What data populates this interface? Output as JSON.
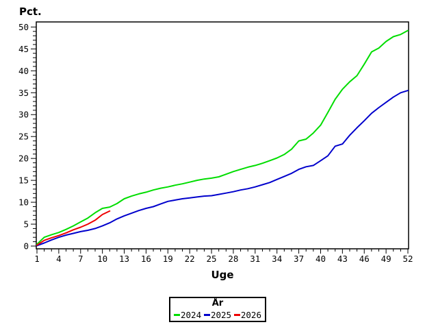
{
  "page": {
    "background": "#ffffff",
    "axis_color": "#000000"
  },
  "chart_data": {
    "type": "line",
    "title": "",
    "ylabel": "Pct.",
    "xlabel": "Uge",
    "xlim": [
      1,
      52
    ],
    "ylim": [
      0,
      50
    ],
    "x_major_step": 3,
    "x_minor_step": 1,
    "y_major_step": 5,
    "y_minor_step": 1,
    "grid": false,
    "legend": {
      "title": "År",
      "position": "bottom-center"
    },
    "series": [
      {
        "name": "2024",
        "color": "#00dd00",
        "x_start": 1,
        "values": [
          0.4,
          2.0,
          2.6,
          3.1,
          3.8,
          4.6,
          5.5,
          6.4,
          7.6,
          8.6,
          8.9,
          9.7,
          10.8,
          11.4,
          11.9,
          12.3,
          12.8,
          13.2,
          13.5,
          13.9,
          14.2,
          14.6,
          15.0,
          15.3,
          15.5,
          15.8,
          16.4,
          17.0,
          17.5,
          18.0,
          18.4,
          18.9,
          19.5,
          20.1,
          20.9,
          22.1,
          24.0,
          24.4,
          25.8,
          27.6,
          30.5,
          33.5,
          35.8,
          37.5,
          38.9,
          41.5,
          44.3,
          45.2,
          46.7,
          47.8,
          48.3,
          49.2
        ]
      },
      {
        "name": "2025",
        "color": "#0000cc",
        "x_start": 1,
        "values": [
          0.1,
          0.7,
          1.4,
          2.0,
          2.5,
          2.9,
          3.3,
          3.6,
          4.0,
          4.6,
          5.3,
          6.2,
          6.9,
          7.5,
          8.1,
          8.6,
          9.0,
          9.6,
          10.2,
          10.5,
          10.8,
          11.0,
          11.2,
          11.4,
          11.5,
          11.8,
          12.1,
          12.4,
          12.8,
          13.1,
          13.5,
          14.0,
          14.5,
          15.2,
          15.9,
          16.6,
          17.5,
          18.1,
          18.4,
          19.5,
          20.6,
          22.8,
          23.3,
          25.3,
          27.0,
          28.6,
          30.3,
          31.6,
          32.8,
          34.0,
          35.0,
          35.5
        ]
      },
      {
        "name": "2026",
        "color": "#ee0000",
        "x_start": 1,
        "values": [
          0.2,
          1.3,
          1.9,
          2.4,
          3.0,
          3.7,
          4.3,
          5.0,
          5.9,
          7.2,
          8.0
        ]
      }
    ]
  }
}
